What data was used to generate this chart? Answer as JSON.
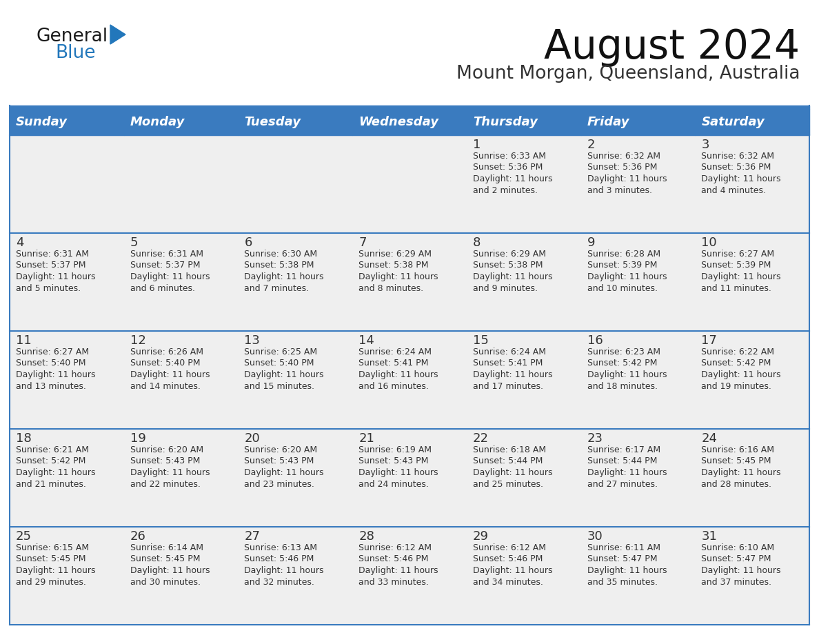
{
  "title": "August 2024",
  "subtitle": "Mount Morgan, Queensland, Australia",
  "header_color": "#3a7bbf",
  "header_text_color": "#ffffff",
  "days_of_week": [
    "Sunday",
    "Monday",
    "Tuesday",
    "Wednesday",
    "Thursday",
    "Friday",
    "Saturday"
  ],
  "bg_color": "#ffffff",
  "row_bg_color": "#efefef",
  "cell_text_color": "#333333",
  "separator_color": "#3a7bbf",
  "day_num_color": "#333333",
  "logo_general_color": "#1a1a1a",
  "logo_blue_color": "#2277bb",
  "calendar_data": [
    [
      {
        "day": "",
        "sunrise": "",
        "sunset": "",
        "daylight": ""
      },
      {
        "day": "",
        "sunrise": "",
        "sunset": "",
        "daylight": ""
      },
      {
        "day": "",
        "sunrise": "",
        "sunset": "",
        "daylight": ""
      },
      {
        "day": "",
        "sunrise": "",
        "sunset": "",
        "daylight": ""
      },
      {
        "day": "1",
        "sunrise": "Sunrise: 6:33 AM",
        "sunset": "Sunset: 5:36 PM",
        "daylight": "Daylight: 11 hours\nand 2 minutes."
      },
      {
        "day": "2",
        "sunrise": "Sunrise: 6:32 AM",
        "sunset": "Sunset: 5:36 PM",
        "daylight": "Daylight: 11 hours\nand 3 minutes."
      },
      {
        "day": "3",
        "sunrise": "Sunrise: 6:32 AM",
        "sunset": "Sunset: 5:36 PM",
        "daylight": "Daylight: 11 hours\nand 4 minutes."
      }
    ],
    [
      {
        "day": "4",
        "sunrise": "Sunrise: 6:31 AM",
        "sunset": "Sunset: 5:37 PM",
        "daylight": "Daylight: 11 hours\nand 5 minutes."
      },
      {
        "day": "5",
        "sunrise": "Sunrise: 6:31 AM",
        "sunset": "Sunset: 5:37 PM",
        "daylight": "Daylight: 11 hours\nand 6 minutes."
      },
      {
        "day": "6",
        "sunrise": "Sunrise: 6:30 AM",
        "sunset": "Sunset: 5:38 PM",
        "daylight": "Daylight: 11 hours\nand 7 minutes."
      },
      {
        "day": "7",
        "sunrise": "Sunrise: 6:29 AM",
        "sunset": "Sunset: 5:38 PM",
        "daylight": "Daylight: 11 hours\nand 8 minutes."
      },
      {
        "day": "8",
        "sunrise": "Sunrise: 6:29 AM",
        "sunset": "Sunset: 5:38 PM",
        "daylight": "Daylight: 11 hours\nand 9 minutes."
      },
      {
        "day": "9",
        "sunrise": "Sunrise: 6:28 AM",
        "sunset": "Sunset: 5:39 PM",
        "daylight": "Daylight: 11 hours\nand 10 minutes."
      },
      {
        "day": "10",
        "sunrise": "Sunrise: 6:27 AM",
        "sunset": "Sunset: 5:39 PM",
        "daylight": "Daylight: 11 hours\nand 11 minutes."
      }
    ],
    [
      {
        "day": "11",
        "sunrise": "Sunrise: 6:27 AM",
        "sunset": "Sunset: 5:40 PM",
        "daylight": "Daylight: 11 hours\nand 13 minutes."
      },
      {
        "day": "12",
        "sunrise": "Sunrise: 6:26 AM",
        "sunset": "Sunset: 5:40 PM",
        "daylight": "Daylight: 11 hours\nand 14 minutes."
      },
      {
        "day": "13",
        "sunrise": "Sunrise: 6:25 AM",
        "sunset": "Sunset: 5:40 PM",
        "daylight": "Daylight: 11 hours\nand 15 minutes."
      },
      {
        "day": "14",
        "sunrise": "Sunrise: 6:24 AM",
        "sunset": "Sunset: 5:41 PM",
        "daylight": "Daylight: 11 hours\nand 16 minutes."
      },
      {
        "day": "15",
        "sunrise": "Sunrise: 6:24 AM",
        "sunset": "Sunset: 5:41 PM",
        "daylight": "Daylight: 11 hours\nand 17 minutes."
      },
      {
        "day": "16",
        "sunrise": "Sunrise: 6:23 AM",
        "sunset": "Sunset: 5:42 PM",
        "daylight": "Daylight: 11 hours\nand 18 minutes."
      },
      {
        "day": "17",
        "sunrise": "Sunrise: 6:22 AM",
        "sunset": "Sunset: 5:42 PM",
        "daylight": "Daylight: 11 hours\nand 19 minutes."
      }
    ],
    [
      {
        "day": "18",
        "sunrise": "Sunrise: 6:21 AM",
        "sunset": "Sunset: 5:42 PM",
        "daylight": "Daylight: 11 hours\nand 21 minutes."
      },
      {
        "day": "19",
        "sunrise": "Sunrise: 6:20 AM",
        "sunset": "Sunset: 5:43 PM",
        "daylight": "Daylight: 11 hours\nand 22 minutes."
      },
      {
        "day": "20",
        "sunrise": "Sunrise: 6:20 AM",
        "sunset": "Sunset: 5:43 PM",
        "daylight": "Daylight: 11 hours\nand 23 minutes."
      },
      {
        "day": "21",
        "sunrise": "Sunrise: 6:19 AM",
        "sunset": "Sunset: 5:43 PM",
        "daylight": "Daylight: 11 hours\nand 24 minutes."
      },
      {
        "day": "22",
        "sunrise": "Sunrise: 6:18 AM",
        "sunset": "Sunset: 5:44 PM",
        "daylight": "Daylight: 11 hours\nand 25 minutes."
      },
      {
        "day": "23",
        "sunrise": "Sunrise: 6:17 AM",
        "sunset": "Sunset: 5:44 PM",
        "daylight": "Daylight: 11 hours\nand 27 minutes."
      },
      {
        "day": "24",
        "sunrise": "Sunrise: 6:16 AM",
        "sunset": "Sunset: 5:45 PM",
        "daylight": "Daylight: 11 hours\nand 28 minutes."
      }
    ],
    [
      {
        "day": "25",
        "sunrise": "Sunrise: 6:15 AM",
        "sunset": "Sunset: 5:45 PM",
        "daylight": "Daylight: 11 hours\nand 29 minutes."
      },
      {
        "day": "26",
        "sunrise": "Sunrise: 6:14 AM",
        "sunset": "Sunset: 5:45 PM",
        "daylight": "Daylight: 11 hours\nand 30 minutes."
      },
      {
        "day": "27",
        "sunrise": "Sunrise: 6:13 AM",
        "sunset": "Sunset: 5:46 PM",
        "daylight": "Daylight: 11 hours\nand 32 minutes."
      },
      {
        "day": "28",
        "sunrise": "Sunrise: 6:12 AM",
        "sunset": "Sunset: 5:46 PM",
        "daylight": "Daylight: 11 hours\nand 33 minutes."
      },
      {
        "day": "29",
        "sunrise": "Sunrise: 6:12 AM",
        "sunset": "Sunset: 5:46 PM",
        "daylight": "Daylight: 11 hours\nand 34 minutes."
      },
      {
        "day": "30",
        "sunrise": "Sunrise: 6:11 AM",
        "sunset": "Sunset: 5:47 PM",
        "daylight": "Daylight: 11 hours\nand 35 minutes."
      },
      {
        "day": "31",
        "sunrise": "Sunrise: 6:10 AM",
        "sunset": "Sunset: 5:47 PM",
        "daylight": "Daylight: 11 hours\nand 37 minutes."
      }
    ]
  ]
}
